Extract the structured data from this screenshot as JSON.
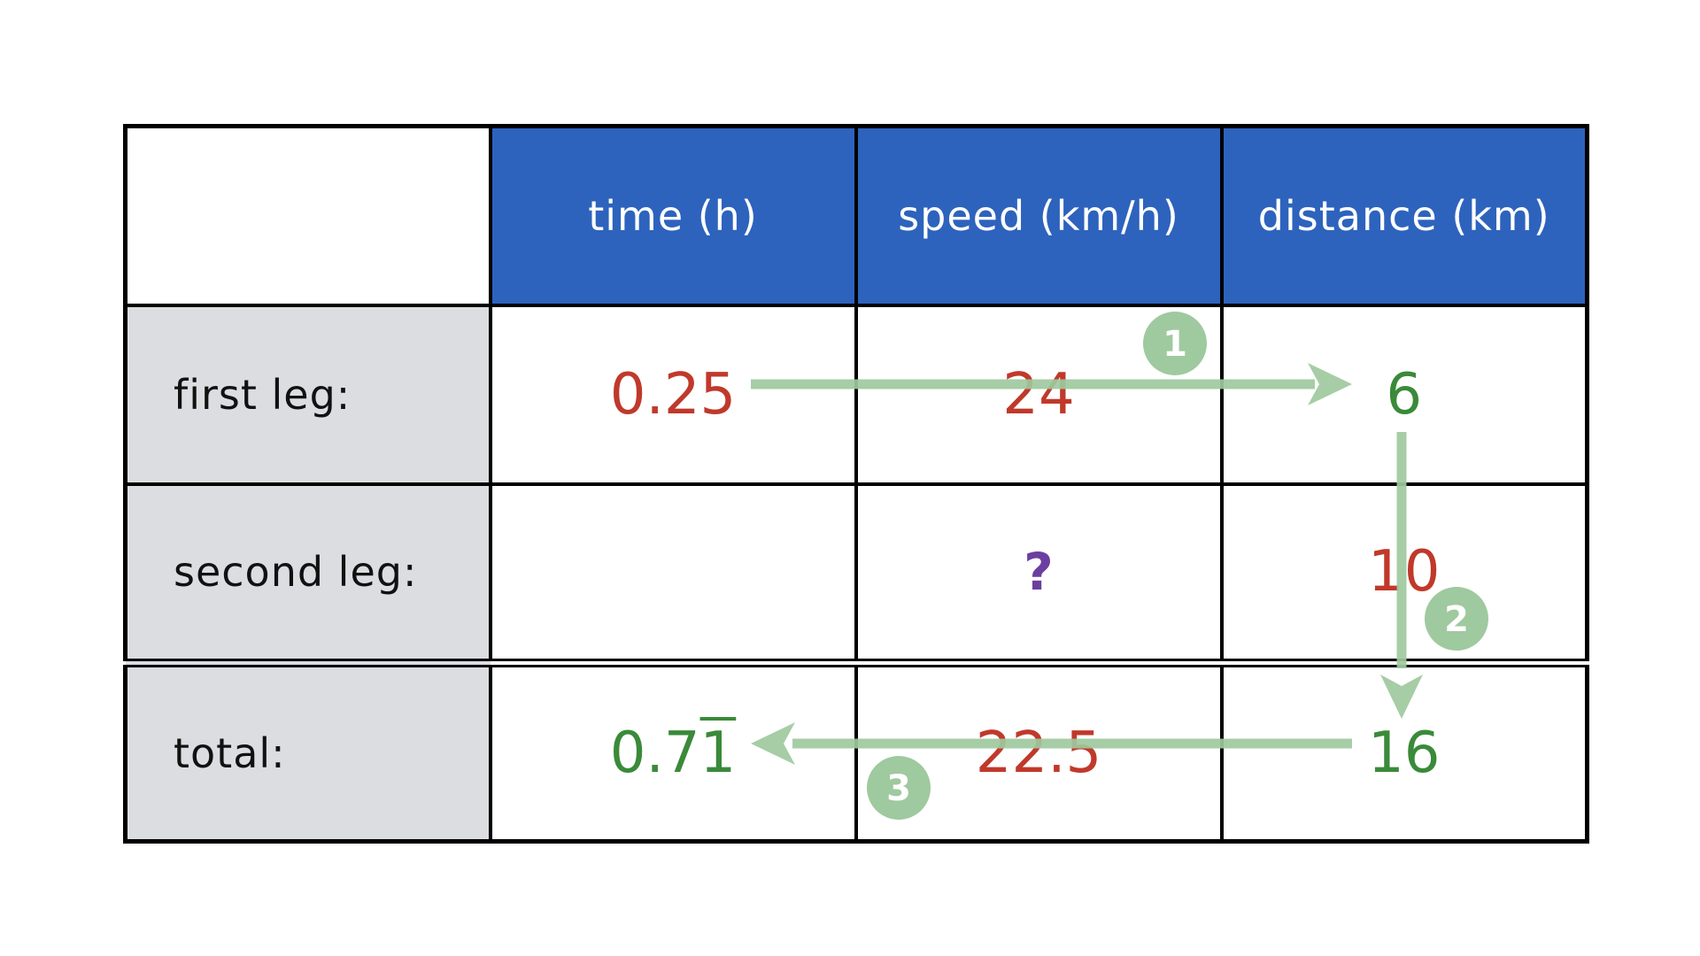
{
  "table": {
    "headers": [
      "time (h)",
      "speed (km/h)",
      "distance (km)"
    ],
    "rows": [
      {
        "label": "first leg:",
        "time": "0.25",
        "speed": "24",
        "distance": "6"
      },
      {
        "label": "second leg:",
        "time": "",
        "speed": "?",
        "distance": "10"
      },
      {
        "label": "total:",
        "time_main": "0.7",
        "time_repeating": "1",
        "speed": "22.5",
        "distance": "16"
      }
    ]
  },
  "steps": [
    "1",
    "2",
    "3"
  ],
  "colors": {
    "header_bg": "#2d63bd",
    "label_bg": "#dcdde0",
    "given_value": "#c0392b",
    "computed_value": "#3a8a3a",
    "unknown_value": "#6b3fa0",
    "arrow": "#9fc99f"
  }
}
